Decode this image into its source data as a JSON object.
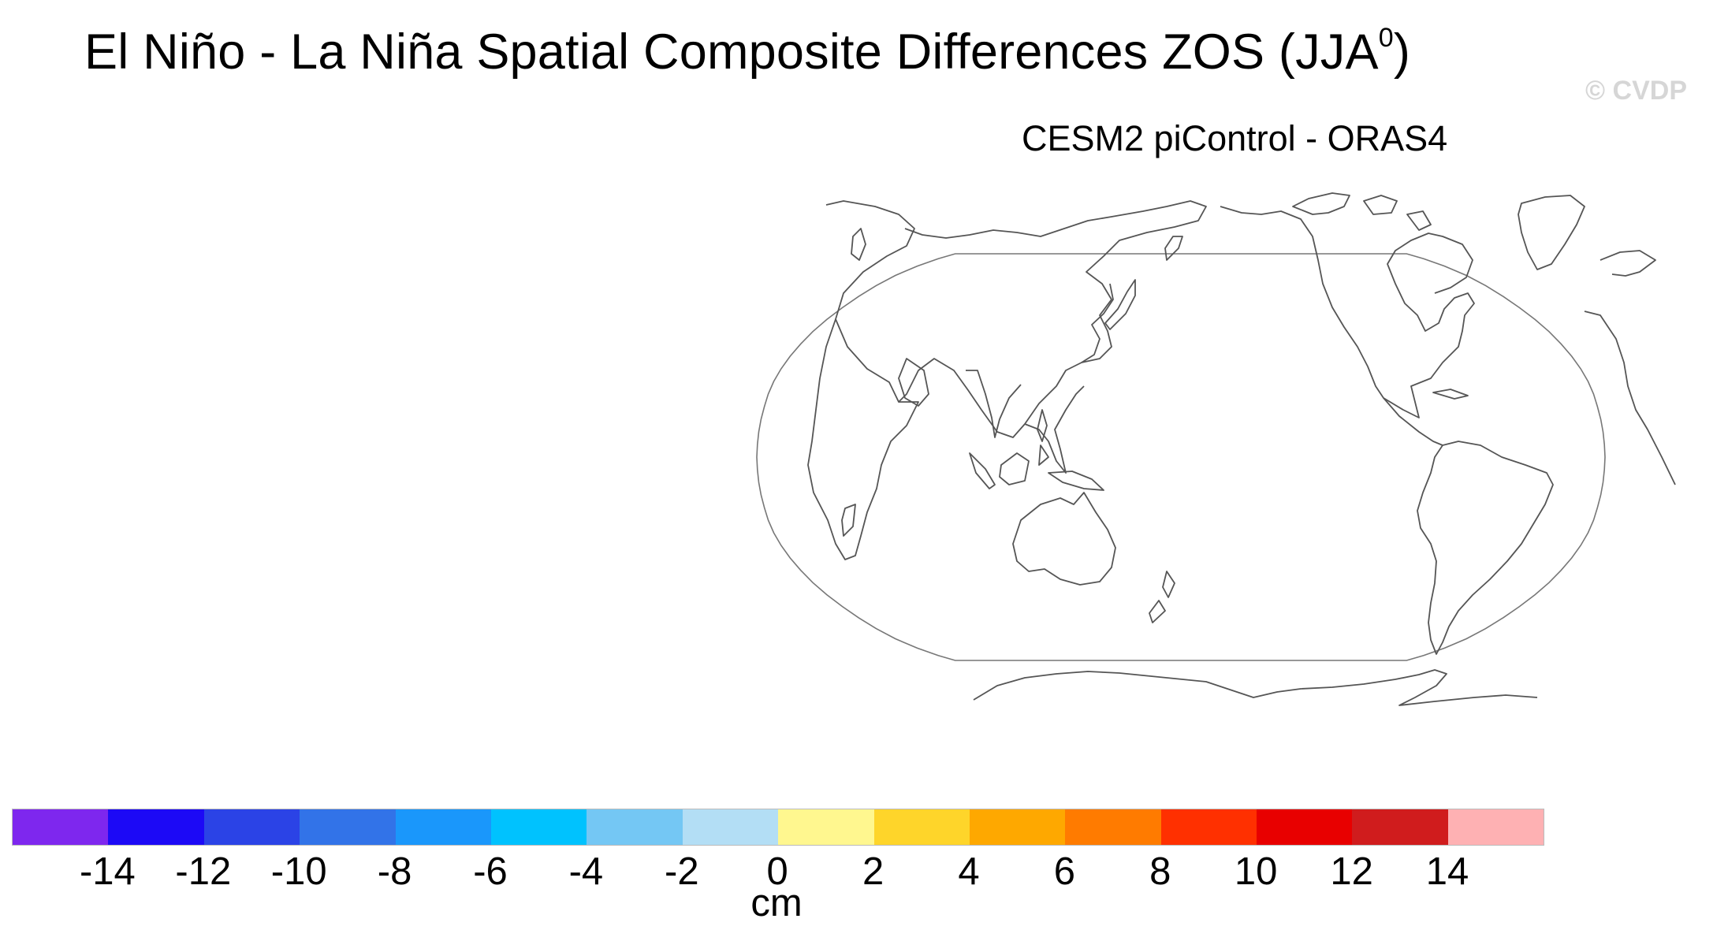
{
  "title": {
    "text": "El Niño - La Niña Spatial Composite Differences ZOS (JJA",
    "superscript": "0",
    "close": ")"
  },
  "watermark": "© CVDP",
  "map": {
    "subtitle": "CESM2 piControl - ORAS4",
    "projection": "robinson",
    "central_longitude": 200,
    "coastline_color": "#555555",
    "border_color": "#777777",
    "filled_data": "none"
  },
  "colorbar": {
    "unit": "cm",
    "tick_labels": [
      "-14",
      "-12",
      "-10",
      "-8",
      "-6",
      "-4",
      "-2",
      "0",
      "2",
      "4",
      "6",
      "8",
      "10",
      "12",
      "14"
    ],
    "colors": [
      "#7e27ee",
      "#1c09f6",
      "#2b43e6",
      "#3273e8",
      "#1a97fb",
      "#00c2fe",
      "#74c7f4",
      "#b3def5",
      "#fff78f",
      "#fed52a",
      "#fea800",
      "#ff7b00",
      "#ff3000",
      "#e80000",
      "#d01c1d",
      "#feb1b3"
    ]
  }
}
